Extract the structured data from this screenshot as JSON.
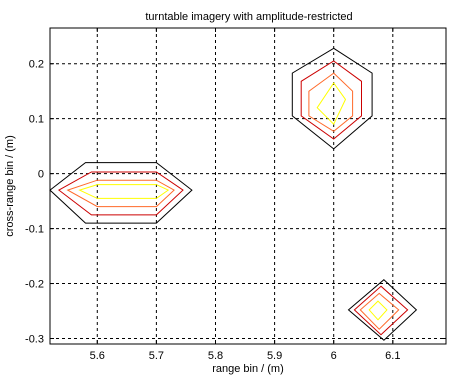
{
  "chart_data": {
    "type": "contour",
    "title": "turntable imagery with amplitude-restricted",
    "xlabel": "range bin / (m)",
    "ylabel": "cross-range bin / (m)",
    "xlim": [
      5.52,
      6.19
    ],
    "ylim": [
      -0.31,
      0.265
    ],
    "grid": true,
    "x_ticks": [
      5.6,
      5.7,
      5.8,
      5.9,
      6.0,
      6.1
    ],
    "x_tick_labels": [
      "5.6",
      "5.7",
      "5.8",
      "5.9",
      "6",
      "6.1"
    ],
    "y_ticks": [
      -0.3,
      -0.2,
      -0.1,
      0,
      0.1,
      0.2
    ],
    "y_tick_labels": [
      "-0.3",
      "-0.2",
      "-0.1",
      "0",
      "0.1",
      "0.2"
    ],
    "level_colors": [
      "#000000",
      "#cc0000",
      "#ff6a2a",
      "#ffff00"
    ],
    "contours": [
      {
        "level": 1,
        "color": "#000000",
        "points": [
          [
            5.58,
            0.02
          ],
          [
            5.7,
            0.02
          ],
          [
            5.76,
            -0.03
          ],
          [
            5.7,
            -0.09
          ],
          [
            5.58,
            -0.09
          ],
          [
            5.52,
            -0.03
          ]
        ]
      },
      {
        "level": 2,
        "color": "#cc0000",
        "points": [
          [
            5.59,
            0.003
          ],
          [
            5.7,
            0.003
          ],
          [
            5.745,
            -0.03
          ],
          [
            5.7,
            -0.075
          ],
          [
            5.59,
            -0.075
          ],
          [
            5.535,
            -0.03
          ]
        ]
      },
      {
        "level": 3,
        "color": "#ff6a2a",
        "points": [
          [
            5.6,
            -0.012
          ],
          [
            5.7,
            -0.012
          ],
          [
            5.73,
            -0.03
          ],
          [
            5.7,
            -0.06
          ],
          [
            5.6,
            -0.06
          ],
          [
            5.55,
            -0.03
          ]
        ]
      },
      {
        "level": 4,
        "color": "#ffff00",
        "points": [
          [
            5.6,
            -0.02
          ],
          [
            5.7,
            -0.02
          ],
          [
            5.72,
            -0.03
          ],
          [
            5.7,
            -0.045
          ],
          [
            5.6,
            -0.045
          ],
          [
            5.57,
            -0.03
          ]
        ]
      },
      {
        "level": 1,
        "color": "#000000",
        "points": [
          [
            6.0,
            0.228
          ],
          [
            6.065,
            0.183
          ],
          [
            6.065,
            0.105
          ],
          [
            6.0,
            0.045
          ],
          [
            5.93,
            0.105
          ],
          [
            5.93,
            0.183
          ]
        ]
      },
      {
        "level": 2,
        "color": "#cc0000",
        "points": [
          [
            6.0,
            0.205
          ],
          [
            6.047,
            0.168
          ],
          [
            6.047,
            0.105
          ],
          [
            6.0,
            0.063
          ],
          [
            5.945,
            0.105
          ],
          [
            5.945,
            0.168
          ]
        ]
      },
      {
        "level": 3,
        "color": "#ff6a2a",
        "points": [
          [
            6.0,
            0.183
          ],
          [
            6.032,
            0.15
          ],
          [
            6.032,
            0.105
          ],
          [
            6.0,
            0.077
          ],
          [
            5.958,
            0.105
          ],
          [
            5.958,
            0.15
          ]
        ]
      },
      {
        "level": 4,
        "color": "#ffff00",
        "points": [
          [
            6.0,
            0.165
          ],
          [
            6.02,
            0.135
          ],
          [
            6.0,
            0.09
          ],
          [
            5.972,
            0.12
          ]
        ]
      },
      {
        "level": 1,
        "color": "#000000",
        "points": [
          [
            6.085,
            -0.193
          ],
          [
            6.14,
            -0.248
          ],
          [
            6.085,
            -0.303
          ],
          [
            6.025,
            -0.248
          ]
        ]
      },
      {
        "level": 2,
        "color": "#cc0000",
        "points": [
          [
            6.08,
            -0.205
          ],
          [
            6.125,
            -0.248
          ],
          [
            6.08,
            -0.293
          ],
          [
            6.035,
            -0.248
          ]
        ]
      },
      {
        "level": 3,
        "color": "#ff6a2a",
        "points": [
          [
            6.077,
            -0.218
          ],
          [
            6.11,
            -0.248
          ],
          [
            6.077,
            -0.283
          ],
          [
            6.045,
            -0.248
          ]
        ]
      },
      {
        "level": 4,
        "color": "#ffff00",
        "points": [
          [
            6.075,
            -0.232
          ],
          [
            6.09,
            -0.248
          ],
          [
            6.075,
            -0.266
          ],
          [
            6.06,
            -0.248
          ]
        ]
      }
    ]
  }
}
